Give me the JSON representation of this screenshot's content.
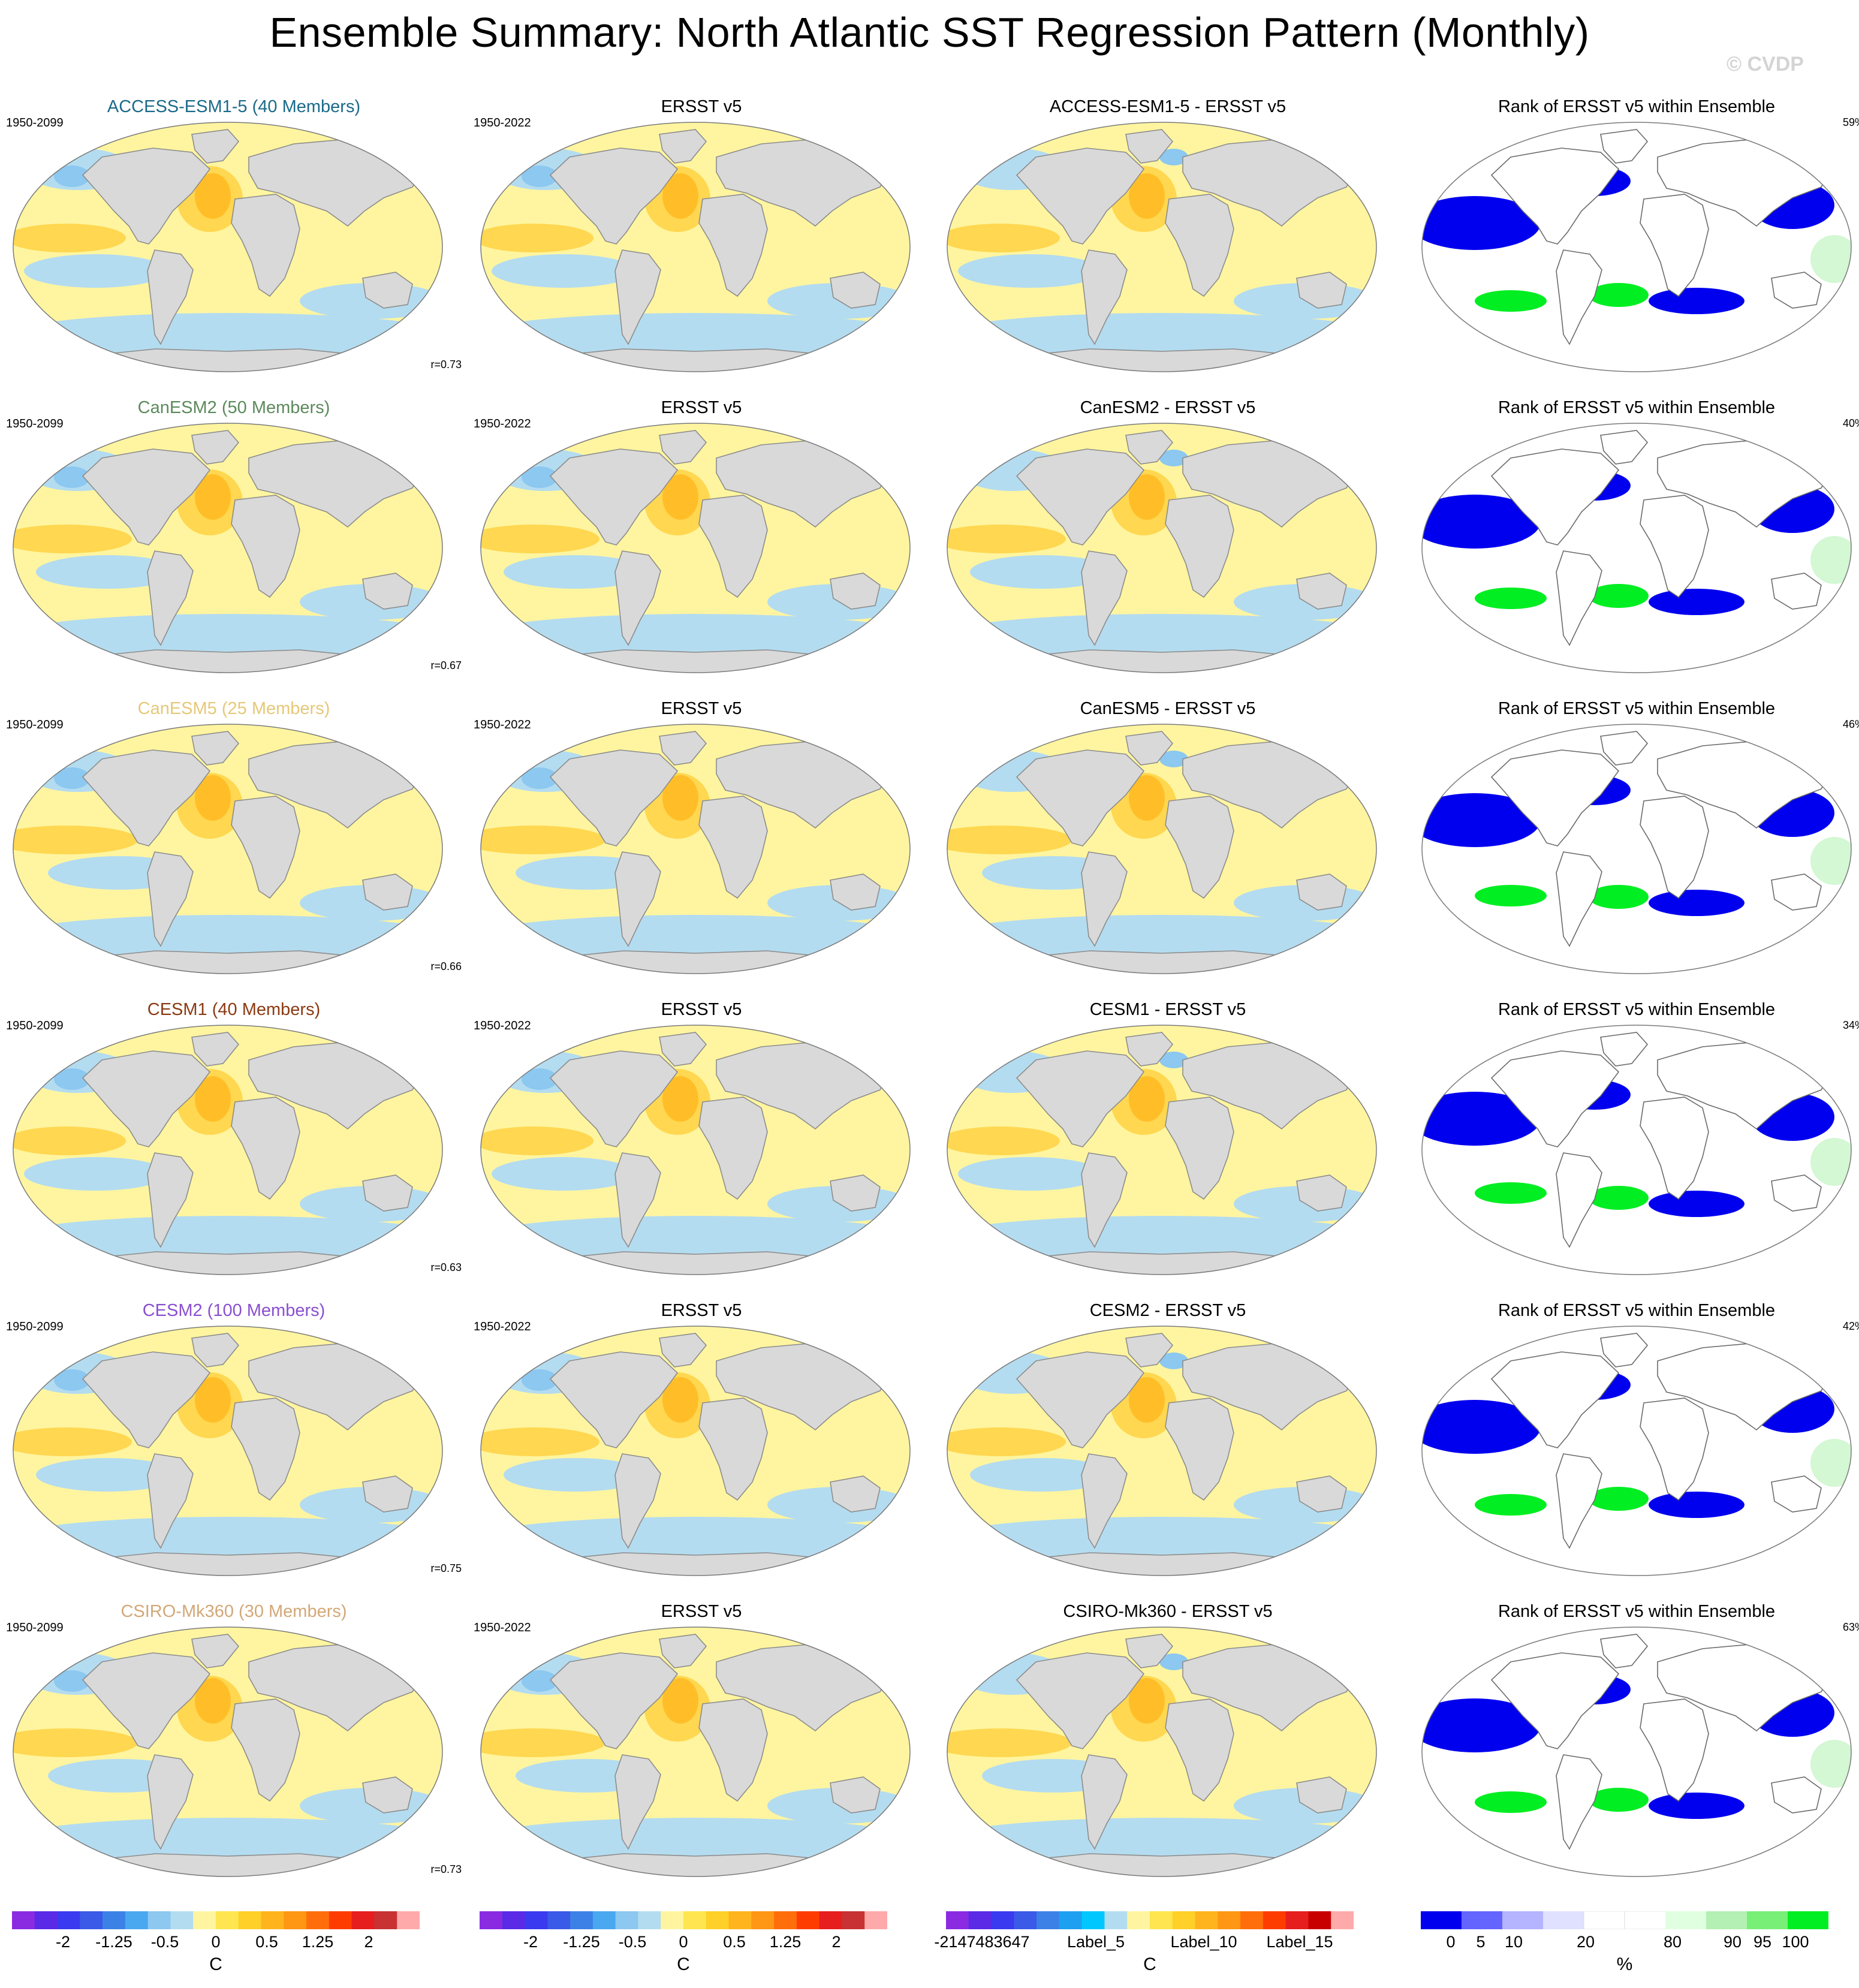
{
  "title": "Ensemble Summary: North Atlantic SST Regression Pattern (Monthly)",
  "watermark": "© CVDP",
  "colors": {
    "land": "#d9d9d9",
    "coast": "#8c8c8c",
    "pale_yellow": "#fff5a0",
    "light_blue": "#b4dcf0",
    "mid_blue": "#8cc8f0",
    "orange_light": "#ffd750",
    "orange": "#ffbe28",
    "rank_blue": "#0000ee",
    "rank_green": "#00ee22",
    "rank_pale_green": "#d4f7d4"
  },
  "rows": [
    {
      "model": "ACCESS-ESM1-5 (40 Members)",
      "model_color": "#1a6a8a",
      "model_period": "1950-2099",
      "obs_title": "ERSST v5",
      "obs_period": "1950-2022",
      "diff_title": "ACCESS-ESM1-5 - ERSST v5",
      "rank_title": "Rank of ERSST v5 within Ensemble",
      "rank_pct": "59%",
      "r_value": "r=0.73"
    },
    {
      "model": "CanESM2 (50 Members)",
      "model_color": "#5c8a5c",
      "model_period": "1950-2099",
      "obs_title": "ERSST v5",
      "obs_period": "1950-2022",
      "diff_title": "CanESM2 - ERSST v5",
      "rank_title": "Rank of ERSST v5 within Ensemble",
      "rank_pct": "40%",
      "r_value": "r=0.67"
    },
    {
      "model": "CanESM5 (25 Members)",
      "model_color": "#e6c878",
      "model_period": "1950-2099",
      "obs_title": "ERSST v5",
      "obs_period": "1950-2022",
      "diff_title": "CanESM5 - ERSST v5",
      "rank_title": "Rank of ERSST v5 within Ensemble",
      "rank_pct": "46%",
      "r_value": "r=0.66"
    },
    {
      "model": "CESM1 (40 Members)",
      "model_color": "#8b3a12",
      "model_period": "1950-2099",
      "obs_title": "ERSST v5",
      "obs_period": "1950-2022",
      "diff_title": "CESM1 - ERSST v5",
      "rank_title": "Rank of ERSST v5 within Ensemble",
      "rank_pct": "34%",
      "r_value": "r=0.63"
    },
    {
      "model": "CESM2 (100 Members)",
      "model_color": "#8a4fd0",
      "model_period": "1950-2099",
      "obs_title": "ERSST v5",
      "obs_period": "1950-2022",
      "diff_title": "CESM2 - ERSST v5",
      "rank_title": "Rank of ERSST v5 within Ensemble",
      "rank_pct": "42%",
      "r_value": "r=0.75"
    },
    {
      "model": "CSIRO-Mk360 (30 Members)",
      "model_color": "#d2a878",
      "model_period": "1950-2099",
      "obs_title": "ERSST v5",
      "obs_period": "1950-2022",
      "diff_title": "CSIRO-Mk360 - ERSST v5",
      "rank_title": "Rank of ERSST v5 within Ensemble",
      "rank_pct": "63%",
      "r_value": "r=0.73"
    }
  ],
  "colorbars": [
    {
      "unit": "C",
      "ticks": [
        "-2",
        "-1.25",
        "-0.5",
        "0",
        "0.5",
        "1.25",
        "2"
      ],
      "colors": [
        "#8a2be2",
        "#5a2ae6",
        "#3a3af0",
        "#3a5ae8",
        "#3c82e6",
        "#4aa8f0",
        "#8cc8f0",
        "#b4dcf0",
        "#fff5a0",
        "#ffe650",
        "#ffd028",
        "#ffb41e",
        "#ff9614",
        "#ff6e0a",
        "#ff3c00",
        "#e61e1e",
        "#c83232",
        "#ffaaaa"
      ]
    },
    {
      "unit": "C",
      "ticks": [
        "-2",
        "-1.25",
        "-0.5",
        "0",
        "0.5",
        "1.25",
        "2"
      ],
      "colors": [
        "#8a2be2",
        "#5a2ae6",
        "#3a3af0",
        "#3a5ae8",
        "#3c82e6",
        "#4aa8f0",
        "#8cc8f0",
        "#b4dcf0",
        "#fff5a0",
        "#ffe650",
        "#ffd028",
        "#ffb41e",
        "#ff9614",
        "#ff6e0a",
        "#ff3c00",
        "#e61e1e",
        "#c83232",
        "#ffaaaa"
      ]
    },
    {
      "unit": "C",
      "ticks": [
        "-2147483647",
        "Label_5",
        "Label_10",
        "Label_15"
      ],
      "colors": [
        "#8a2be2",
        "#5a2ae6",
        "#3a3af0",
        "#3a5ae8",
        "#3c82e6",
        "#1ea0f0",
        "#00c8ff",
        "#b4dcf0",
        "#fff5a0",
        "#ffe650",
        "#ffd028",
        "#ffb41e",
        "#ff9614",
        "#ff6e0a",
        "#ff3c00",
        "#e61e1e",
        "#c80000",
        "#ffaaaa"
      ]
    },
    {
      "unit": "%",
      "ticks": [
        "0",
        "5",
        "10",
        "20",
        "80",
        "90",
        "95",
        "100"
      ],
      "colors": [
        "#0000ee",
        "#6464ff",
        "#b4b4ff",
        "#e0e0ff",
        "#ffffff",
        "#ffffff",
        "#e0ffe0",
        "#b4f0b4",
        "#78f078",
        "#00ee22"
      ]
    }
  ]
}
